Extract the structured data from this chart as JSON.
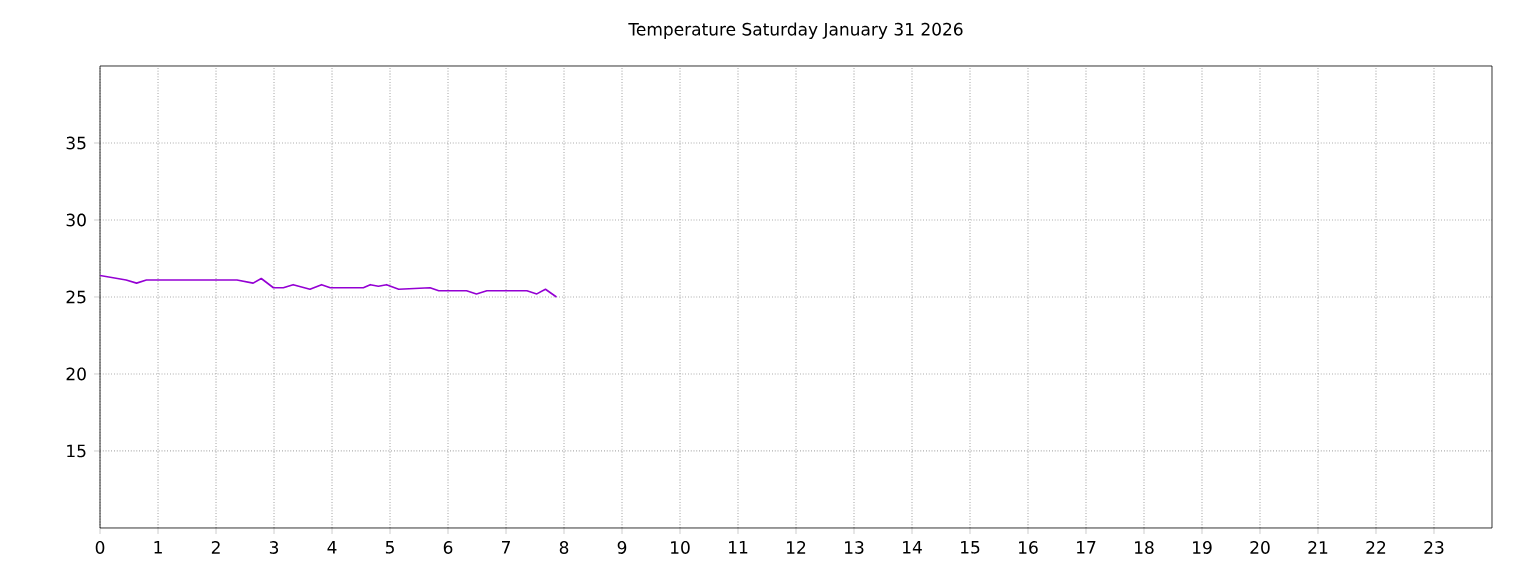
{
  "chart_data": {
    "type": "line",
    "title": "Temperature Saturday January 31 2026",
    "x": [
      0,
      0.45,
      0.63,
      0.8,
      2.36,
      2.64,
      2.78,
      2.99,
      3.16,
      3.33,
      3.62,
      3.82,
      3.97,
      4.54,
      4.66,
      4.8,
      4.94,
      5.15,
      5.69,
      5.84,
      6.32,
      6.49,
      6.67,
      7.36,
      7.53,
      7.68,
      7.87
    ],
    "series": [
      {
        "color": "#9400d3",
        "values": [
          26.4,
          26.1,
          25.9,
          26.1,
          26.1,
          25.9,
          26.2,
          25.6,
          25.6,
          25.8,
          25.5,
          25.8,
          25.6,
          25.6,
          25.8,
          25.7,
          25.8,
          25.5,
          25.6,
          25.4,
          25.4,
          25.2,
          25.4,
          25.4,
          25.2,
          25.5,
          25.0
        ]
      }
    ],
    "xlim": [
      0,
      24
    ],
    "ylim": [
      10,
      40
    ],
    "xticks": [
      0,
      1,
      2,
      3,
      4,
      5,
      6,
      7,
      8,
      9,
      10,
      11,
      12,
      13,
      14,
      15,
      16,
      17,
      18,
      19,
      20,
      21,
      22,
      23
    ],
    "yticks": [
      15,
      20,
      25,
      30,
      35
    ],
    "grid": true,
    "marker": "none",
    "line_style": "solid"
  }
}
